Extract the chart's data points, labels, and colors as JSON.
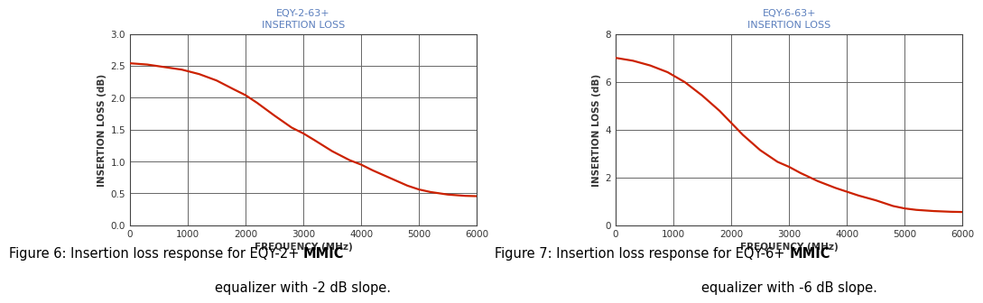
{
  "chart1": {
    "title_line1": "EQY-2-63+",
    "title_line2": "INSERTION LOSS",
    "title_color": "#5b7fbd",
    "xlabel": "FREQUENCY (MHz)",
    "ylabel": "INSERTION LOSS (dB)",
    "xlim": [
      0,
      6000
    ],
    "ylim": [
      0.0,
      3.0
    ],
    "xticks": [
      0,
      1000,
      2000,
      3000,
      4000,
      5000,
      6000
    ],
    "yticks": [
      0.0,
      0.5,
      1.0,
      1.5,
      2.0,
      2.5,
      3.0
    ],
    "curve_color": "#cc2200",
    "freq": [
      0,
      300,
      600,
      900,
      1200,
      1500,
      1800,
      2000,
      2200,
      2500,
      2800,
      3000,
      3200,
      3500,
      3800,
      4000,
      4200,
      4500,
      4800,
      5000,
      5200,
      5500,
      5800,
      6000
    ],
    "loss": [
      2.54,
      2.52,
      2.48,
      2.44,
      2.37,
      2.27,
      2.13,
      2.04,
      1.92,
      1.72,
      1.53,
      1.44,
      1.33,
      1.16,
      1.02,
      0.95,
      0.86,
      0.74,
      0.62,
      0.56,
      0.52,
      0.48,
      0.46,
      0.455
    ],
    "cap1_normal": "Figure 6: Insertion loss response for EQY-2+ ",
    "cap1_bold": "MMIC",
    "cap1_line2": "equalizer with -2 dB slope."
  },
  "chart2": {
    "title_line1": "EQY-6-63+",
    "title_line2": "INSERTION LOSS",
    "title_color": "#5b7fbd",
    "xlabel": "FREQUENCY (MHz)",
    "ylabel": "INSERTION LOSS (dB)",
    "xlim": [
      0,
      6000
    ],
    "ylim": [
      0,
      8
    ],
    "xticks": [
      0,
      1000,
      2000,
      3000,
      4000,
      5000,
      6000
    ],
    "yticks": [
      0,
      2,
      4,
      6,
      8
    ],
    "curve_color": "#cc2200",
    "freq": [
      0,
      300,
      600,
      900,
      1200,
      1500,
      1800,
      2000,
      2200,
      2500,
      2800,
      3000,
      3200,
      3500,
      3800,
      4000,
      4200,
      4500,
      4800,
      5000,
      5200,
      5500,
      5800,
      6000
    ],
    "loss": [
      7.0,
      6.88,
      6.68,
      6.4,
      5.98,
      5.42,
      4.78,
      4.28,
      3.78,
      3.14,
      2.65,
      2.44,
      2.18,
      1.84,
      1.56,
      1.4,
      1.24,
      1.04,
      0.8,
      0.7,
      0.64,
      0.59,
      0.56,
      0.55
    ],
    "cap2_normal": "Figure 7: Insertion loss response for EQY-6+ ",
    "cap2_bold": "MMIC",
    "cap2_line2": "equalizer with -6 dB slope."
  },
  "background_color": "#ffffff",
  "grid_color": "#666666",
  "axis_color": "#444444",
  "tick_color": "#333333",
  "label_color": "#333333",
  "title_fontsize": 8.0,
  "axis_label_fontsize": 7.5,
  "tick_fontsize": 7.5,
  "caption_fontsize": 10.5
}
